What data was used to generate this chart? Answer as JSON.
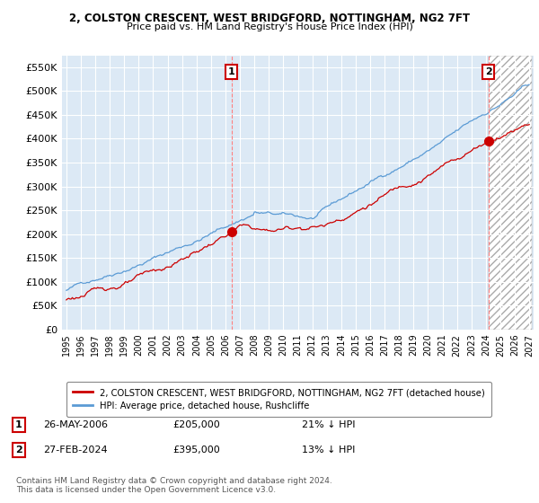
{
  "title": "2, COLSTON CRESCENT, WEST BRIDGFORD, NOTTINGHAM, NG2 7FT",
  "subtitle": "Price paid vs. HM Land Registry's House Price Index (HPI)",
  "ylim": [
    0,
    575000
  ],
  "yticks": [
    0,
    50000,
    100000,
    150000,
    200000,
    250000,
    300000,
    350000,
    400000,
    450000,
    500000,
    550000
  ],
  "ytick_labels": [
    "£0",
    "£50K",
    "£100K",
    "£150K",
    "£200K",
    "£250K",
    "£300K",
    "£350K",
    "£400K",
    "£450K",
    "£500K",
    "£550K"
  ],
  "hpi_color": "#5B9BD5",
  "price_color": "#CC0000",
  "background_color": "#FFFFFF",
  "chart_bg_color": "#DCE9F5",
  "grid_color": "#FFFFFF",
  "legend_label_red": "2, COLSTON CRESCENT, WEST BRIDGFORD, NOTTINGHAM, NG2 7FT (detached house)",
  "legend_label_blue": "HPI: Average price, detached house, Rushcliffe",
  "sale1_date": "26-MAY-2006",
  "sale1_price": "£205,000",
  "sale1_hpi": "21% ↓ HPI",
  "sale1_price_val": 205000,
  "sale2_date": "27-FEB-2024",
  "sale2_price": "£395,000",
  "sale2_hpi": "13% ↓ HPI",
  "sale2_price_val": 395000,
  "footnote": "Contains HM Land Registry data © Crown copyright and database right 2024.\nThis data is licensed under the Open Government Licence v3.0."
}
